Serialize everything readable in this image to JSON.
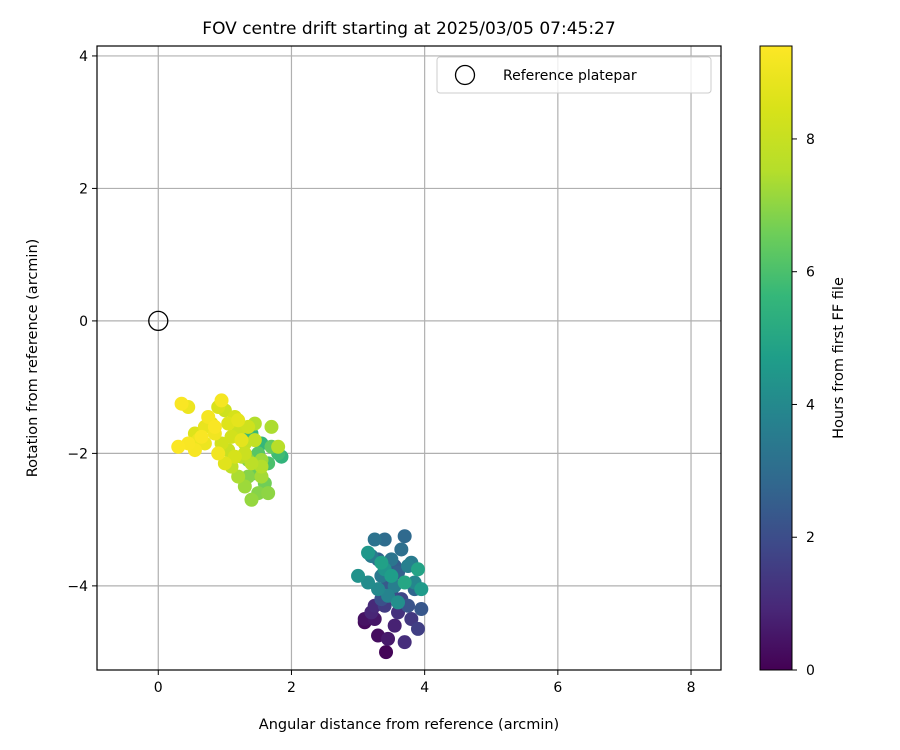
{
  "chart_data": {
    "type": "scatter",
    "title": "FOV centre drift starting at 2025/03/05 07:45:27",
    "xlabel": "Angular distance from reference (arcmin)",
    "ylabel": "Rotation from reference (arcmin)",
    "xlim": [
      -0.92,
      8.45
    ],
    "ylim": [
      -5.27,
      4.15
    ],
    "xticks": [
      0,
      2,
      4,
      6,
      8
    ],
    "xtick_labels": [
      "0",
      "2",
      "4",
      "6",
      "8"
    ],
    "yticks": [
      -4,
      -2,
      0,
      2,
      4
    ],
    "ytick_labels": [
      "−4",
      "−2",
      "0",
      "2",
      "4"
    ],
    "grid": true,
    "legend": {
      "placement": "upper right",
      "entries": [
        {
          "label": "Reference platepar",
          "marker": "hollow-circle"
        }
      ]
    },
    "colorbar": {
      "label": "Hours from first FF file",
      "colormap": "viridis",
      "range": [
        0,
        9.4
      ],
      "ticks": [
        0,
        2,
        4,
        6,
        8
      ],
      "tick_labels": [
        "0",
        "2",
        "4",
        "6",
        "8"
      ]
    },
    "reference_point": {
      "x": 0,
      "y": 0,
      "label": "Reference platepar"
    },
    "series": [
      {
        "color_by": "hours",
        "points": [
          {
            "x": 3.42,
            "y": -5.0,
            "c": 0.1
          },
          {
            "x": 3.3,
            "y": -4.75,
            "c": 0.3
          },
          {
            "x": 3.1,
            "y": -4.55,
            "c": 0.2
          },
          {
            "x": 3.25,
            "y": -4.5,
            "c": 0.5
          },
          {
            "x": 3.45,
            "y": -4.8,
            "c": 0.6
          },
          {
            "x": 3.55,
            "y": -4.6,
            "c": 0.8
          },
          {
            "x": 3.2,
            "y": -4.4,
            "c": 0.9
          },
          {
            "x": 3.7,
            "y": -4.85,
            "c": 1.1
          },
          {
            "x": 3.6,
            "y": -4.4,
            "c": 1.2
          },
          {
            "x": 3.8,
            "y": -4.5,
            "c": 1.4
          },
          {
            "x": 3.4,
            "y": -4.3,
            "c": 1.5
          },
          {
            "x": 3.9,
            "y": -4.65,
            "c": 1.6
          },
          {
            "x": 3.65,
            "y": -4.2,
            "c": 1.8
          },
          {
            "x": 3.5,
            "y": -4.1,
            "c": 2.0
          },
          {
            "x": 3.35,
            "y": -4.2,
            "c": 2.1
          },
          {
            "x": 3.75,
            "y": -4.3,
            "c": 2.2
          },
          {
            "x": 3.95,
            "y": -4.35,
            "c": 2.3
          },
          {
            "x": 3.45,
            "y": -3.95,
            "c": 2.4
          },
          {
            "x": 3.6,
            "y": -3.8,
            "c": 2.6
          },
          {
            "x": 3.3,
            "y": -3.6,
            "c": 2.7
          },
          {
            "x": 3.85,
            "y": -4.05,
            "c": 2.8
          },
          {
            "x": 3.7,
            "y": -3.25,
            "c": 2.9
          },
          {
            "x": 3.4,
            "y": -3.3,
            "c": 3.0
          },
          {
            "x": 3.65,
            "y": -3.45,
            "c": 3.1
          },
          {
            "x": 3.25,
            "y": -3.3,
            "c": 3.2
          },
          {
            "x": 3.5,
            "y": -3.6,
            "c": 3.3
          },
          {
            "x": 3.35,
            "y": -3.85,
            "c": 3.4
          },
          {
            "x": 3.2,
            "y": -3.55,
            "c": 3.5
          },
          {
            "x": 3.55,
            "y": -4.0,
            "c": 3.6
          },
          {
            "x": 3.75,
            "y": -3.7,
            "c": 3.7
          },
          {
            "x": 3.45,
            "y": -4.15,
            "c": 3.8
          },
          {
            "x": 3.85,
            "y": -3.95,
            "c": 3.9
          },
          {
            "x": 3.3,
            "y": -4.05,
            "c": 4.0
          },
          {
            "x": 3.15,
            "y": -3.95,
            "c": 4.1
          },
          {
            "x": 3.6,
            "y": -4.25,
            "c": 4.2
          },
          {
            "x": 3.0,
            "y": -3.85,
            "c": 4.3
          },
          {
            "x": 3.4,
            "y": -3.75,
            "c": 4.4
          },
          {
            "x": 3.15,
            "y": -3.5,
            "c": 4.5
          },
          {
            "x": 3.95,
            "y": -4.05,
            "c": 4.6
          },
          {
            "x": 3.5,
            "y": -3.85,
            "c": 4.7
          },
          {
            "x": 3.35,
            "y": -3.65,
            "c": 4.8
          },
          {
            "x": 3.9,
            "y": -3.75,
            "c": 4.9
          },
          {
            "x": 3.7,
            "y": -3.95,
            "c": 5.0
          },
          {
            "x": 3.8,
            "y": -3.65,
            "c": 3.5
          },
          {
            "x": 3.55,
            "y": -3.7,
            "c": 2.5
          },
          {
            "x": 3.25,
            "y": -4.3,
            "c": 1.0
          },
          {
            "x": 3.1,
            "y": -4.5,
            "c": 0.4
          },
          {
            "x": 1.85,
            "y": -2.05,
            "c": 5.5
          },
          {
            "x": 1.8,
            "y": -2.0,
            "c": 5.8
          },
          {
            "x": 1.55,
            "y": -1.85,
            "c": 5.6
          },
          {
            "x": 1.4,
            "y": -1.7,
            "c": 5.7
          },
          {
            "x": 1.65,
            "y": -2.15,
            "c": 6.0
          },
          {
            "x": 1.5,
            "y": -2.0,
            "c": 6.2
          },
          {
            "x": 1.7,
            "y": -1.9,
            "c": 6.4
          },
          {
            "x": 1.45,
            "y": -2.3,
            "c": 6.5
          },
          {
            "x": 1.6,
            "y": -2.45,
            "c": 6.6
          },
          {
            "x": 1.35,
            "y": -2.1,
            "c": 6.8
          },
          {
            "x": 1.5,
            "y": -2.6,
            "c": 6.9
          },
          {
            "x": 1.65,
            "y": -2.6,
            "c": 7.0
          },
          {
            "x": 1.4,
            "y": -2.7,
            "c": 7.1
          },
          {
            "x": 1.3,
            "y": -2.5,
            "c": 7.2
          },
          {
            "x": 1.55,
            "y": -2.35,
            "c": 7.3
          },
          {
            "x": 1.2,
            "y": -2.35,
            "c": 7.4
          },
          {
            "x": 1.45,
            "y": -1.55,
            "c": 7.5
          },
          {
            "x": 1.7,
            "y": -1.6,
            "c": 7.4
          },
          {
            "x": 1.25,
            "y": -2.05,
            "c": 7.6
          },
          {
            "x": 1.4,
            "y": -2.15,
            "c": 7.7
          },
          {
            "x": 1.1,
            "y": -2.2,
            "c": 7.8
          },
          {
            "x": 1.3,
            "y": -1.85,
            "c": 7.9
          },
          {
            "x": 1.8,
            "y": -1.9,
            "c": 7.6
          },
          {
            "x": 1.55,
            "y": -2.1,
            "c": 7.2
          },
          {
            "x": 1.05,
            "y": -1.95,
            "c": 8.0
          },
          {
            "x": 1.2,
            "y": -1.65,
            "c": 8.1
          },
          {
            "x": 1.35,
            "y": -1.6,
            "c": 8.2
          },
          {
            "x": 0.95,
            "y": -1.85,
            "c": 8.3
          },
          {
            "x": 1.15,
            "y": -1.45,
            "c": 8.4
          },
          {
            "x": 0.9,
            "y": -1.3,
            "c": 8.5
          },
          {
            "x": 1.05,
            "y": -1.55,
            "c": 8.6
          },
          {
            "x": 0.8,
            "y": -1.55,
            "c": 8.7
          },
          {
            "x": 1.0,
            "y": -1.35,
            "c": 8.2
          },
          {
            "x": 1.25,
            "y": -1.8,
            "c": 8.8
          },
          {
            "x": 0.7,
            "y": -1.6,
            "c": 8.9
          },
          {
            "x": 0.6,
            "y": -1.8,
            "c": 9.0
          },
          {
            "x": 0.85,
            "y": -1.7,
            "c": 9.1
          },
          {
            "x": 0.95,
            "y": -1.2,
            "c": 9.2
          },
          {
            "x": 0.75,
            "y": -1.45,
            "c": 9.2
          },
          {
            "x": 0.45,
            "y": -1.85,
            "c": 9.3
          },
          {
            "x": 0.55,
            "y": -1.95,
            "c": 9.25
          },
          {
            "x": 0.35,
            "y": -1.25,
            "c": 9.3
          },
          {
            "x": 0.45,
            "y": -1.3,
            "c": 9.0
          },
          {
            "x": 0.3,
            "y": -1.9,
            "c": 9.35
          },
          {
            "x": 0.65,
            "y": -1.75,
            "c": 9.3
          },
          {
            "x": 0.9,
            "y": -2.0,
            "c": 9.1
          },
          {
            "x": 1.0,
            "y": -2.15,
            "c": 8.7
          },
          {
            "x": 0.7,
            "y": -1.85,
            "c": 9.0
          },
          {
            "x": 1.15,
            "y": -2.05,
            "c": 8.4
          },
          {
            "x": 1.3,
            "y": -2.0,
            "c": 8.1
          },
          {
            "x": 1.1,
            "y": -1.75,
            "c": 8.3
          },
          {
            "x": 1.45,
            "y": -1.8,
            "c": 7.9
          },
          {
            "x": 1.55,
            "y": -2.2,
            "c": 7.5
          },
          {
            "x": 0.85,
            "y": -1.6,
            "c": 9.3
          },
          {
            "x": 1.2,
            "y": -1.5,
            "c": 8.8
          },
          {
            "x": 0.55,
            "y": -1.7,
            "c": 8.6
          },
          {
            "x": 1.35,
            "y": -2.35,
            "c": 6.9
          }
        ]
      }
    ]
  }
}
